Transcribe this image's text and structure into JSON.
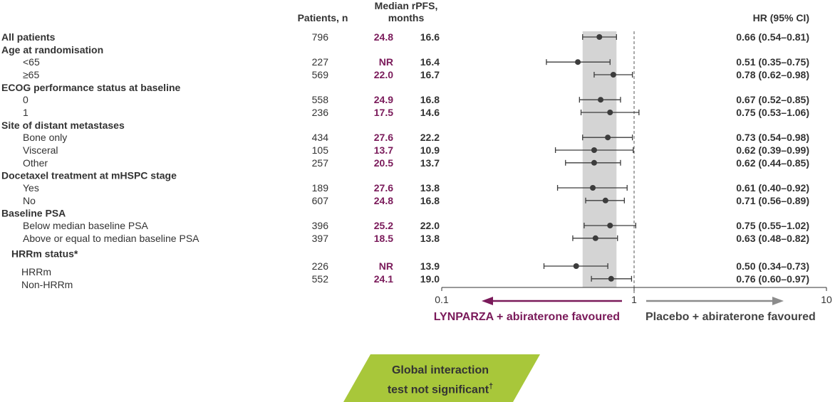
{
  "headers": {
    "patients": "Patients, n",
    "rpfs_line1": "Median rPFS,",
    "rpfs_line2": "months",
    "hr": "HR (95% CI)"
  },
  "colors": {
    "lynparza": "#7a1a5a",
    "placebo_arrow": "#8c8c8c",
    "band": "#d4d4d4",
    "point": "#3c3c3c",
    "badge": "#a8c73a"
  },
  "chart_data": {
    "type": "forest",
    "x_scale": "log",
    "xlim": [
      0.1,
      10
    ],
    "x_ticks": [
      "0.1",
      "1",
      "10"
    ],
    "reference_line": 1,
    "overall_ci_band": [
      0.54,
      0.81
    ],
    "favoured_left": "LYNPARZA + abiraterone favoured",
    "favoured_right": "Placebo + abiraterone favoured",
    "rows": [
      {
        "label": "All patients",
        "kind": "group",
        "n": "796",
        "lynparza": "24.8",
        "placebo": "16.6",
        "hr": 0.66,
        "lo": 0.54,
        "hi": 0.81,
        "hr_text": "0.66 (0.54–0.81)"
      },
      {
        "label": "Age at randomisation",
        "kind": "header"
      },
      {
        "label": "<65",
        "kind": "sub",
        "n": "227",
        "lynparza": "NR",
        "placebo": "16.4",
        "hr": 0.51,
        "lo": 0.35,
        "hi": 0.75,
        "hr_text": "0.51 (0.35–0.75)"
      },
      {
        "label": "≥65",
        "kind": "sub",
        "n": "569",
        "lynparza": "22.0",
        "placebo": "16.7",
        "hr": 0.78,
        "lo": 0.62,
        "hi": 0.98,
        "hr_text": "0.78 (0.62–0.98)"
      },
      {
        "label": "ECOG performance status at baseline",
        "kind": "header"
      },
      {
        "label": "0",
        "kind": "sub",
        "n": "558",
        "lynparza": "24.9",
        "placebo": "16.8",
        "hr": 0.67,
        "lo": 0.52,
        "hi": 0.85,
        "hr_text": "0.67 (0.52–0.85)"
      },
      {
        "label": "1",
        "kind": "sub",
        "n": "236",
        "lynparza": "17.5",
        "placebo": "14.6",
        "hr": 0.75,
        "lo": 0.53,
        "hi": 1.06,
        "hr_text": "0.75 (0.53–1.06)"
      },
      {
        "label": "Site of distant metastases",
        "kind": "header"
      },
      {
        "label": "Bone only",
        "kind": "sub",
        "n": "434",
        "lynparza": "27.6",
        "placebo": "22.2",
        "hr": 0.73,
        "lo": 0.54,
        "hi": 0.98,
        "hr_text": "0.73 (0.54–0.98)"
      },
      {
        "label": "Visceral",
        "kind": "sub",
        "n": "105",
        "lynparza": "13.7",
        "placebo": "10.9",
        "hr": 0.62,
        "lo": 0.39,
        "hi": 0.99,
        "hr_text": "0.62 (0.39–0.99)"
      },
      {
        "label": "Other",
        "kind": "sub",
        "n": "257",
        "lynparza": "20.5",
        "placebo": "13.7",
        "hr": 0.62,
        "lo": 0.44,
        "hi": 0.85,
        "hr_text": "0.62 (0.44–0.85)"
      },
      {
        "label": "Docetaxel treatment at mHSPC stage",
        "kind": "header"
      },
      {
        "label": "Yes",
        "kind": "sub",
        "n": "189",
        "lynparza": "27.6",
        "placebo": "13.8",
        "hr": 0.61,
        "lo": 0.4,
        "hi": 0.92,
        "hr_text": "0.61 (0.40–0.92)"
      },
      {
        "label": "No",
        "kind": "sub",
        "n": "607",
        "lynparza": "24.8",
        "placebo": "16.8",
        "hr": 0.71,
        "lo": 0.56,
        "hi": 0.89,
        "hr_text": "0.71 (0.56–0.89)"
      },
      {
        "label": "Baseline PSA",
        "kind": "header"
      },
      {
        "label": "Below median baseline PSA",
        "kind": "sub",
        "n": "396",
        "lynparza": "25.2",
        "placebo": "22.0",
        "hr": 0.75,
        "lo": 0.55,
        "hi": 1.02,
        "hr_text": "0.75 (0.55–1.02)"
      },
      {
        "label": "Above or equal to median baseline PSA",
        "kind": "sub",
        "n": "397",
        "lynparza": "18.5",
        "placebo": "13.8",
        "hr": 0.63,
        "lo": 0.48,
        "hi": 0.82,
        "hr_text": "0.63 (0.48–0.82)"
      },
      {
        "label": "HRRm status*",
        "kind": "header2"
      },
      {
        "label": "HRRm",
        "kind": "sub-offset",
        "n": "226",
        "lynparza": "NR",
        "placebo": "13.9",
        "hr": 0.5,
        "lo": 0.34,
        "hi": 0.73,
        "hr_text": "0.50 (0.34–0.73)"
      },
      {
        "label": "Non-HRRm",
        "kind": "sub-offset",
        "n": "552",
        "lynparza": "24.1",
        "placebo": "19.0",
        "hr": 0.76,
        "lo": 0.6,
        "hi": 0.97,
        "hr_text": "0.76 (0.60–0.97)"
      }
    ]
  },
  "badge": {
    "line1": "Global interaction",
    "line2": "test not significant",
    "mark": "†"
  }
}
